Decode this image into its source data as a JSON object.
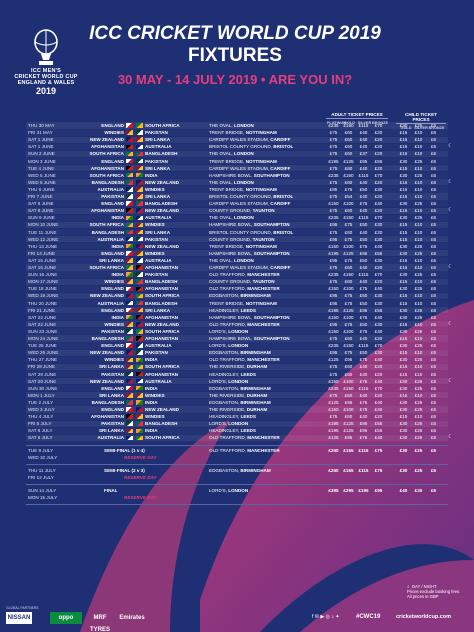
{
  "title": {
    "line1": "ICC CRICKET WORLD CUP 2019",
    "line2": "FIXTURES",
    "line3": "30 MAY - 14 JULY 2019 • ARE YOU IN?"
  },
  "logo": {
    "line1": "ICC MEN'S",
    "line2": "CRICKET WORLD CUP",
    "line3": "ENGLAND & WALES",
    "year": "2019"
  },
  "price_headers": {
    "adult": "ADULT TICKET PRICES",
    "child": "CHILD TICKET PRICES",
    "adult_tiers": [
      "PLATINUM",
      "GOLD",
      "SILVER",
      "BRONZE"
    ],
    "child_tiers": [
      "GOLD",
      "SILVER",
      "BRONZE"
    ]
  },
  "colors": {
    "background": "#1f2f73",
    "accent": "#e63e7c"
  },
  "fixtures": [
    {
      "date": "THU 30 MAY",
      "t1": "ENGLAND",
      "t2": "SOUTH AFRICA",
      "venue": "THE OVAL,",
      "city": "LONDON",
      "p": [
        "£235",
        "£150",
        "£115",
        "£70"
      ],
      "c": [
        "£30",
        "£25",
        "£6"
      ],
      "dn": false
    },
    {
      "date": "FRI 31 MAY",
      "t1": "WINDIES",
      "t2": "PAKISTAN",
      "venue": "TRENT BRIDGE,",
      "city": "NOTTINGHAM",
      "p": [
        "£75",
        "£60",
        "£40",
        "£20"
      ],
      "c": [
        "£15",
        "£10",
        "£6"
      ],
      "dn": false
    },
    {
      "date": "SAT 1 JUNE",
      "t1": "NEW ZEALAND",
      "t2": "SRI LANKA",
      "venue": "CARDIFF WALES STADIUM,",
      "city": "CARDIFF",
      "p": [
        "£75",
        "£60",
        "£40",
        "£20"
      ],
      "c": [
        "£15",
        "£10",
        "£6"
      ],
      "dn": false
    },
    {
      "date": "SAT 1 JUNE",
      "t1": "AFGHANISTAN",
      "t2": "AUSTRALIA",
      "venue": "BRISTOL COUNTY GROUND,",
      "city": "BRISTOL",
      "p": [
        "£75",
        "£60",
        "£40",
        "£20"
      ],
      "c": [
        "£15",
        "£10",
        "£6"
      ],
      "dn": true
    },
    {
      "date": "SUN 2 JUNE",
      "t1": "SOUTH AFRICA",
      "t2": "BANGLADESH",
      "venue": "THE OVAL,",
      "city": "LONDON",
      "p": [
        "£75",
        "£60",
        "£37",
        "£20"
      ],
      "c": [
        "£15",
        "£10",
        "£6"
      ],
      "dn": false
    },
    {
      "date": "MON 3 JUNE",
      "t1": "ENGLAND",
      "t2": "PAKISTAN",
      "venue": "TRENT BRIDGE,",
      "city": "NOTTINGHAM",
      "p": [
        "£195",
        "£125",
        "£95",
        "£55"
      ],
      "c": [
        "£30",
        "£25",
        "£6"
      ],
      "dn": false
    },
    {
      "date": "TUE 4 JUNE",
      "t1": "AFGHANISTAN",
      "t2": "SRI LANKA",
      "venue": "CARDIFF WALES STADIUM,",
      "city": "CARDIFF",
      "p": [
        "£75",
        "£60",
        "£40",
        "£20"
      ],
      "c": [
        "£15",
        "£10",
        "£6"
      ],
      "dn": false
    },
    {
      "date": "WED 5 JUNE",
      "t1": "SOUTH AFRICA",
      "t2": "INDIA",
      "venue": "HAMPSHIRE BOWL,",
      "city": "SOUTHAMPTON",
      "p": [
        "£235",
        "£150",
        "£115",
        "£70"
      ],
      "c": [
        "£30",
        "£25",
        "£6"
      ],
      "dn": false
    },
    {
      "date": "WED 5 JUNE",
      "t1": "BANGLADESH",
      "t2": "NEW ZEALAND",
      "venue": "THE OVAL,",
      "city": "LONDON",
      "p": [
        "£75",
        "£60",
        "£40",
        "£20"
      ],
      "c": [
        "£15",
        "£10",
        "£6"
      ],
      "dn": true
    },
    {
      "date": "THU 6 JUNE",
      "t1": "AUSTRALIA",
      "t2": "WINDIES",
      "venue": "TRENT BRIDGE,",
      "city": "NOTTINGHAM",
      "p": [
        "£95",
        "£75",
        "£50",
        "£30"
      ],
      "c": [
        "£15",
        "£10",
        "£6"
      ],
      "dn": false
    },
    {
      "date": "FRI 7 JUNE",
      "t1": "PAKISTAN",
      "t2": "SRI LANKA",
      "venue": "BRISTOL COUNTY GROUND,",
      "city": "BRISTOL",
      "p": [
        "£75",
        "£54",
        "£40",
        "£20"
      ],
      "c": [
        "£15",
        "£10",
        "£6"
      ],
      "dn": false
    },
    {
      "date": "SAT 8 JUNE",
      "t1": "ENGLAND",
      "t2": "BANGLADESH",
      "venue": "CARDIFF WALES STADIUM,",
      "city": "CARDIFF",
      "p": [
        "£150",
        "£100",
        "£75",
        "£40"
      ],
      "c": [
        "£30",
        "£25",
        "£6"
      ],
      "dn": false
    },
    {
      "date": "SAT 8 JUNE",
      "t1": "AFGHANISTAN",
      "t2": "NEW ZEALAND",
      "venue": "COUNTY GROUND,",
      "city": "TAUNTON",
      "p": [
        "£75",
        "£60",
        "£40",
        "£20"
      ],
      "c": [
        "£15",
        "£10",
        "£6"
      ],
      "dn": true
    },
    {
      "date": "SUN 9 JUNE",
      "t1": "INDIA",
      "t2": "AUSTRALIA",
      "venue": "THE OVAL,",
      "city": "LONDON",
      "p": [
        "£235",
        "£150",
        "£115",
        "£70"
      ],
      "c": [
        "£30",
        "£25",
        "£6"
      ],
      "dn": false
    },
    {
      "date": "MON 10 JUNE",
      "t1": "SOUTH AFRICA",
      "t2": "WINDIES",
      "venue": "HAMPSHIRE BOWL,",
      "city": "SOUTHAMPTON",
      "p": [
        "£95",
        "£75",
        "£50",
        "£30"
      ],
      "c": [
        "£15",
        "£10",
        "£6"
      ],
      "dn": false
    },
    {
      "date": "TUE 11 JUNE",
      "t1": "BANGLADESH",
      "t2": "SRI LANKA",
      "venue": "BRISTOL COUNTY GROUND,",
      "city": "BRISTOL",
      "p": [
        "£75",
        "£60",
        "£40",
        "£20"
      ],
      "c": [
        "£15",
        "£10",
        "£6"
      ],
      "dn": false
    },
    {
      "date": "WED 12 JUNE",
      "t1": "AUSTRALIA",
      "t2": "PAKISTAN",
      "venue": "COUNTY GROUND,",
      "city": "TAUNTON",
      "p": [
        "£95",
        "£75",
        "£50",
        "£30"
      ],
      "c": [
        "£15",
        "£10",
        "£6"
      ],
      "dn": false
    },
    {
      "date": "THU 13 JUNE",
      "t1": "INDIA",
      "t2": "NEW ZEALAND",
      "venue": "TRENT BRIDGE,",
      "city": "NOTTINGHAM",
      "p": [
        "£150",
        "£100",
        "£75",
        "£40"
      ],
      "c": [
        "£30",
        "£25",
        "£6"
      ],
      "dn": false
    },
    {
      "date": "FRI 14 JUNE",
      "t1": "ENGLAND",
      "t2": "WINDIES",
      "venue": "HAMPSHIRE BOWL,",
      "city": "SOUTHAMPTON",
      "p": [
        "£195",
        "£125",
        "£95",
        "£55"
      ],
      "c": [
        "£30",
        "£25",
        "£6"
      ],
      "dn": false
    },
    {
      "date": "SAT 15 JUNE",
      "t1": "SRI LANKA",
      "t2": "AUSTRALIA",
      "venue": "THE OVAL,",
      "city": "LONDON",
      "p": [
        "£95",
        "£75",
        "£50",
        "£30"
      ],
      "c": [
        "£15",
        "£10",
        "£6"
      ],
      "dn": false
    },
    {
      "date": "SAT 15 JUNE",
      "t1": "SOUTH AFRICA",
      "t2": "AFGHANISTAN",
      "venue": "CARDIFF WALES STADIUM,",
      "city": "CARDIFF",
      "p": [
        "£75",
        "£60",
        "£40",
        "£20"
      ],
      "c": [
        "£15",
        "£10",
        "£6"
      ],
      "dn": true
    },
    {
      "date": "SUN 16 JUNE",
      "t1": "INDIA",
      "t2": "PAKISTAN",
      "venue": "OLD TRAFFORD,",
      "city": "MANCHESTER",
      "p": [
        "£235",
        "£150",
        "£115",
        "£70"
      ],
      "c": [
        "£30",
        "£25",
        "£6"
      ],
      "dn": false
    },
    {
      "date": "MON 17 JUNE",
      "t1": "WINDIES",
      "t2": "BANGLADESH",
      "venue": "COUNTY GROUND,",
      "city": "TAUNTON",
      "p": [
        "£75",
        "£60",
        "£40",
        "£20"
      ],
      "c": [
        "£15",
        "£10",
        "£6"
      ],
      "dn": false
    },
    {
      "date": "TUE 18 JUNE",
      "t1": "ENGLAND",
      "t2": "AFGHANISTAN",
      "venue": "OLD TRAFFORD,",
      "city": "MANCHESTER",
      "p": [
        "£150",
        "£100",
        "£75",
        "£40"
      ],
      "c": [
        "£30",
        "£25",
        "£6"
      ],
      "dn": false
    },
    {
      "date": "WED 19 JUNE",
      "t1": "NEW ZEALAND",
      "t2": "SOUTH AFRICA",
      "venue": "EDGBASTON,",
      "city": "BIRMINGHAM",
      "p": [
        "£95",
        "£75",
        "£50",
        "£30"
      ],
      "c": [
        "£15",
        "£10",
        "£6"
      ],
      "dn": false
    },
    {
      "date": "THU 20 JUNE",
      "t1": "AUSTRALIA",
      "t2": "BANGLADESH",
      "venue": "TRENT BRIDGE,",
      "city": "NOTTINGHAM",
      "p": [
        "£95",
        "£75",
        "£50",
        "£30"
      ],
      "c": [
        "£15",
        "£10",
        "£6"
      ],
      "dn": false
    },
    {
      "date": "FRI 21 JUNE",
      "t1": "ENGLAND",
      "t2": "SRI LANKA",
      "venue": "HEADINGLEY,",
      "city": "LEEDS",
      "p": [
        "£195",
        "£125",
        "£95",
        "£55"
      ],
      "c": [
        "£30",
        "£25",
        "£6"
      ],
      "dn": false
    },
    {
      "date": "SAT 22 JUNE",
      "t1": "INDIA",
      "t2": "AFGHANISTAN",
      "venue": "HAMPSHIRE BOWL,",
      "city": "SOUTHAMPTON",
      "p": [
        "£150",
        "£100",
        "£75",
        "£40"
      ],
      "c": [
        "£30",
        "£25",
        "£6"
      ],
      "dn": false
    },
    {
      "date": "SAT 22 JUNE",
      "t1": "WINDIES",
      "t2": "NEW ZEALAND",
      "venue": "OLD TRAFFORD,",
      "city": "MANCHESTER",
      "p": [
        "£95",
        "£75",
        "£50",
        "£30"
      ],
      "c": [
        "£15",
        "£10",
        "£6"
      ],
      "dn": true
    },
    {
      "date": "SUN 23 JUNE",
      "t1": "PAKISTAN",
      "t2": "SOUTH AFRICA",
      "venue": "LORD'S,",
      "city": "LONDON",
      "p": [
        "£150",
        "£100",
        "£75",
        "£40"
      ],
      "c": [
        "£30",
        "£25",
        "£6"
      ],
      "dn": false
    },
    {
      "date": "MON 24 JUNE",
      "t1": "BANGLADESH",
      "t2": "AFGHANISTAN",
      "venue": "HAMPSHIRE BOWL,",
      "city": "SOUTHAMPTON",
      "p": [
        "£75",
        "£60",
        "£40",
        "£20"
      ],
      "c": [
        "£15",
        "£10",
        "£6"
      ],
      "dn": false
    },
    {
      "date": "TUE 25 JUNE",
      "t1": "ENGLAND",
      "t2": "AUSTRALIA",
      "venue": "LORD'S,",
      "city": "LONDON",
      "p": [
        "£235",
        "£150",
        "£115",
        "£70"
      ],
      "c": [
        "£30",
        "£25",
        "£6"
      ],
      "dn": false
    },
    {
      "date": "WED 26 JUNE",
      "t1": "NEW ZEALAND",
      "t2": "PAKISTAN",
      "venue": "EDGBASTON,",
      "city": "BIRMINGHAM",
      "p": [
        "£95",
        "£75",
        "£50",
        "£30"
      ],
      "c": [
        "£15",
        "£10",
        "£6"
      ],
      "dn": false
    },
    {
      "date": "THU 27 JUNE",
      "t1": "WINDIES",
      "t2": "INDIA",
      "venue": "OLD TRAFFORD,",
      "city": "MANCHESTER",
      "p": [
        "£125",
        "£95",
        "£75",
        "£40"
      ],
      "c": [
        "£30",
        "£25",
        "£6"
      ],
      "dn": false
    },
    {
      "date": "FRI 28 JUNE",
      "t1": "SRI LANKA",
      "t2": "SOUTH AFRICA",
      "venue": "THE RIVERSIDE,",
      "city": "DURHAM",
      "p": [
        "£75",
        "£60",
        "£40",
        "£20"
      ],
      "c": [
        "£15",
        "£10",
        "£6"
      ],
      "dn": false
    },
    {
      "date": "SAT 29 JUNE",
      "t1": "PAKISTAN",
      "t2": "AFGHANISTAN",
      "venue": "HEADINGLEY,",
      "city": "LEEDS",
      "p": [
        "£75",
        "£60",
        "£40",
        "£20"
      ],
      "c": [
        "£15",
        "£10",
        "£6"
      ],
      "dn": false
    },
    {
      "date": "SAT 29 JUNE",
      "t1": "NEW ZEALAND",
      "t2": "AUSTRALIA",
      "venue": "LORD'S,",
      "city": "LONDON",
      "p": [
        "£150",
        "£100",
        "£75",
        "£40"
      ],
      "c": [
        "£30",
        "£25",
        "£6"
      ],
      "dn": true
    },
    {
      "date": "SUN 30 JUNE",
      "t1": "ENGLAND",
      "t2": "INDIA",
      "venue": "EDGBASTON,",
      "city": "BIRMINGHAM",
      "p": [
        "£235",
        "£150",
        "£115",
        "£70"
      ],
      "c": [
        "£30",
        "£25",
        "£6"
      ],
      "dn": false
    },
    {
      "date": "MON 1 JULY",
      "t1": "SRI LANKA",
      "t2": "WINDIES",
      "venue": "THE RIVERSIDE,",
      "city": "DURHAM",
      "p": [
        "£75",
        "£60",
        "£40",
        "£20"
      ],
      "c": [
        "£15",
        "£10",
        "£6"
      ],
      "dn": false
    },
    {
      "date": "TUE 2 JULY",
      "t1": "BANGLADESH",
      "t2": "INDIA",
      "venue": "EDGBASTON,",
      "city": "BIRMINGHAM",
      "p": [
        "£125",
        "£95",
        "£75",
        "£40"
      ],
      "c": [
        "£30",
        "£25",
        "£6"
      ],
      "dn": false
    },
    {
      "date": "WED 3 JULY",
      "t1": "ENGLAND",
      "t2": "NEW ZEALAND",
      "venue": "THE RIVERSIDE,",
      "city": "DURHAM",
      "p": [
        "£150",
        "£100",
        "£75",
        "£40"
      ],
      "c": [
        "£30",
        "£25",
        "£6"
      ],
      "dn": false
    },
    {
      "date": "THU 4 JULY",
      "t1": "AFGHANISTAN",
      "t2": "WINDIES",
      "venue": "HEADINGLEY,",
      "city": "LEEDS",
      "p": [
        "£75",
        "£60",
        "£40",
        "£20"
      ],
      "c": [
        "£15",
        "£10",
        "£6"
      ],
      "dn": false
    },
    {
      "date": "FRI 5 JULY",
      "t1": "PAKISTAN",
      "t2": "BANGLADESH",
      "venue": "LORD'S,",
      "city": "LONDON",
      "p": [
        "£195",
        "£125",
        "£95",
        "£55"
      ],
      "c": [
        "£30",
        "£25",
        "£6"
      ],
      "dn": false
    },
    {
      "date": "SAT 6 JULY",
      "t1": "SRI LANKA",
      "t2": "INDIA",
      "venue": "HEADINGLEY,",
      "city": "LEEDS",
      "p": [
        "£195",
        "£125",
        "£95",
        "£55"
      ],
      "c": [
        "£30",
        "£25",
        "£6"
      ],
      "dn": false
    },
    {
      "date": "SAT 6 JULY",
      "t1": "AUSTRALIA",
      "t2": "SOUTH AFRICA",
      "venue": "OLD TRAFFORD,",
      "city": "MANCHESTER",
      "p": [
        "£125",
        "£95",
        "£75",
        "£40"
      ],
      "c": [
        "£30",
        "£25",
        "£6"
      ],
      "dn": true
    }
  ],
  "knockouts": [
    {
      "date": "TUE 9 JULY",
      "label": "SEMI-FINAL (1 v 4)",
      "venue": "OLD TRAFFORD,",
      "city": "MANCHESTER",
      "p": [
        "£260",
        "£155",
        "£115",
        "£75"
      ],
      "c": [
        "£30",
        "£25",
        "£6"
      ],
      "reserve_date": "WED 10 JULY",
      "reserve": "RESERVE DAY"
    },
    {
      "date": "THU 11 JULY",
      "label": "SEMI-FINAL (2 v 3)",
      "venue": "EDGBASTON,",
      "city": "BIRMINGHAM",
      "p": [
        "£260",
        "£155",
        "£115",
        "£75"
      ],
      "c": [
        "£30",
        "£25",
        "£6"
      ],
      "reserve_date": "FRI 12 JULY",
      "reserve": "RESERVE DAY"
    },
    {
      "date": "SUN 14 JULY",
      "label": "FINAL",
      "venue": "LORD'S,",
      "city": "LONDON",
      "p": [
        "£395",
        "£295",
        "£195",
        "£95"
      ],
      "c": [
        "£40",
        "£30",
        "£6"
      ],
      "reserve_date": "MON 15 JULY",
      "reserve": "RESERVE DAY"
    }
  ],
  "legend": {
    "daynight": "DAY / NIGHT",
    "note1": "Prices exclude booking fees.",
    "note2": "All prices in GBP"
  },
  "footer": {
    "sponsor_label": "GLOBAL PARTNERS",
    "sponsors": [
      "NISSAN",
      "oppo",
      "MRF TYRES",
      "Emirates"
    ],
    "hashtag": "#CWC19",
    "website": "cricketworldcup.com",
    "social": "f ✉ ▶ ◎ ♪ ✦"
  }
}
